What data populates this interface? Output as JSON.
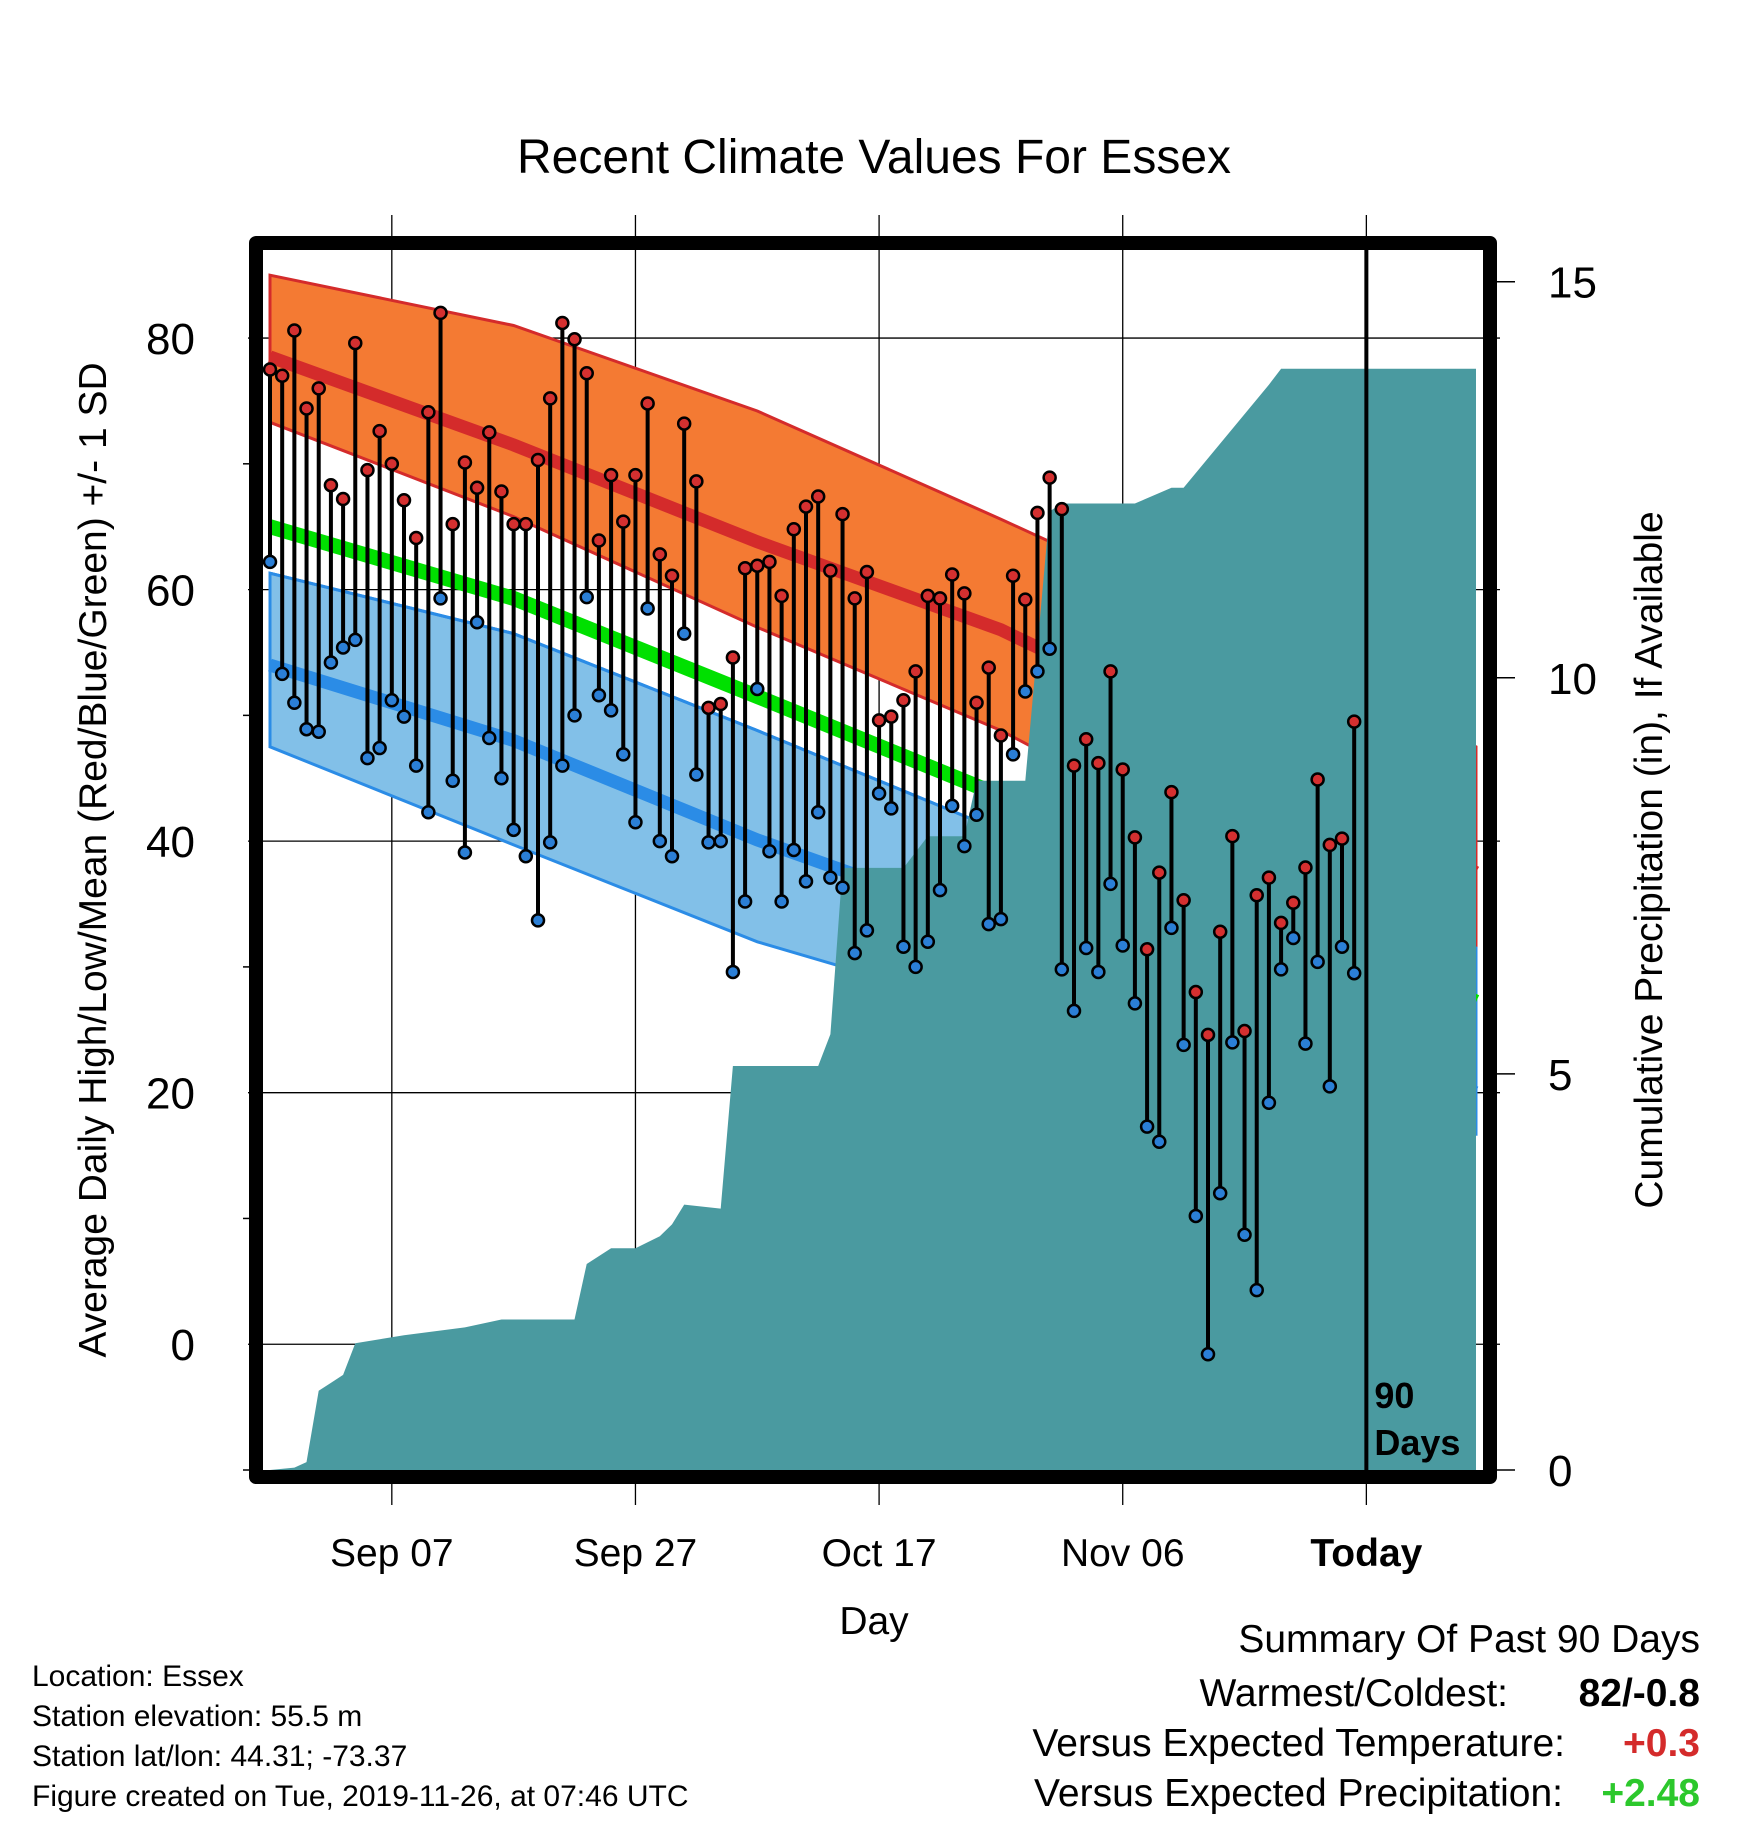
{
  "chart_data": {
    "type": "line",
    "title": "Recent Climate Values For Essex",
    "xlabel": "Day",
    "ylabel": "Average Daily High/Low/Mean (Red/Blue/Green) +/- 1 SD",
    "y2label": "Cumulative Precipitation (in), If Available",
    "x_tick_labels": [
      "Sep 07",
      "Sep 27",
      "Oct 17",
      "Nov 06",
      "Today"
    ],
    "y_ticks": [
      0,
      20,
      40,
      60,
      80
    ],
    "y2_ticks": [
      0,
      5,
      10,
      15
    ],
    "ylim": [
      -10,
      87
    ],
    "y2lim": [
      0,
      15.4
    ],
    "today_label": "90 Days",
    "grid": true,
    "x_start_date": "2019-08-28",
    "today_date": "2019-11-26",
    "x_end_date": "2019-12-05",
    "observed_dates": [
      "2019-08-28",
      "2019-08-29",
      "2019-08-30",
      "2019-08-31",
      "2019-09-01",
      "2019-09-02",
      "2019-09-03",
      "2019-09-04",
      "2019-09-05",
      "2019-09-06",
      "2019-09-07",
      "2019-09-08",
      "2019-09-09",
      "2019-09-10",
      "2019-09-11",
      "2019-09-12",
      "2019-09-13",
      "2019-09-14",
      "2019-09-15",
      "2019-09-16",
      "2019-09-17",
      "2019-09-18",
      "2019-09-19",
      "2019-09-20",
      "2019-09-21",
      "2019-09-22",
      "2019-09-23",
      "2019-09-24",
      "2019-09-25",
      "2019-09-26",
      "2019-09-27",
      "2019-09-28",
      "2019-09-29",
      "2019-09-30",
      "2019-10-01",
      "2019-10-02",
      "2019-10-03",
      "2019-10-04",
      "2019-10-05",
      "2019-10-06",
      "2019-10-07",
      "2019-10-08",
      "2019-10-09",
      "2019-10-10",
      "2019-10-11",
      "2019-10-12",
      "2019-10-13",
      "2019-10-14",
      "2019-10-15",
      "2019-10-16",
      "2019-10-17",
      "2019-10-18",
      "2019-10-19",
      "2019-10-20",
      "2019-10-21",
      "2019-10-22",
      "2019-10-23",
      "2019-10-24",
      "2019-10-25",
      "2019-10-26",
      "2019-10-27",
      "2019-10-28",
      "2019-10-29",
      "2019-10-30",
      "2019-10-31",
      "2019-11-01",
      "2019-11-02",
      "2019-11-03",
      "2019-11-04",
      "2019-11-05",
      "2019-11-06",
      "2019-11-07",
      "2019-11-08",
      "2019-11-09",
      "2019-11-10",
      "2019-11-11",
      "2019-11-12",
      "2019-11-13",
      "2019-11-14",
      "2019-11-15",
      "2019-11-16",
      "2019-11-17",
      "2019-11-18",
      "2019-11-19",
      "2019-11-20",
      "2019-11-21",
      "2019-11-22",
      "2019-11-23",
      "2019-11-24",
      "2019-11-25"
    ],
    "observed_high": [
      77.5,
      77,
      80.6,
      74.4,
      76,
      68.3,
      67.2,
      79.6,
      69.5,
      72.6,
      70,
      67.1,
      64.1,
      74.1,
      82,
      65.2,
      70.1,
      68.1,
      72.5,
      67.8,
      65.2,
      65.2,
      70.3,
      75.2,
      81.2,
      79.9,
      77.2,
      63.9,
      69.1,
      65.4,
      69.1,
      74.8,
      62.8,
      61.1,
      73.2,
      68.6,
      50.6,
      50.9,
      54.6,
      61.7,
      61.9,
      62.2,
      59.5,
      64.8,
      66.6,
      67.4,
      61.5,
      66,
      59.3,
      61.4,
      49.6,
      49.9,
      51.2,
      53.5,
      59.5,
      59.3,
      61.2,
      59.7,
      51,
      53.8,
      48.4,
      61.1,
      59.2,
      66.1,
      68.9,
      66.4,
      46,
      48.1,
      46.2,
      53.5,
      45.7,
      40.3,
      31.4,
      37.5,
      43.9,
      35.3,
      28,
      24.6,
      32.8,
      40.4,
      24.9,
      35.7,
      37.1,
      33.5,
      35.1,
      37.9,
      44.9,
      39.7,
      40.2,
      49.5
    ],
    "observed_low": [
      62.2,
      53.3,
      51,
      48.9,
      48.7,
      54.2,
      55.4,
      56,
      46.6,
      47.4,
      51.2,
      49.9,
      46,
      42.3,
      59.3,
      44.8,
      39.1,
      57.4,
      48.2,
      45,
      40.9,
      38.8,
      33.7,
      39.9,
      46,
      50,
      59.4,
      51.6,
      50.4,
      46.9,
      41.5,
      58.5,
      40,
      38.8,
      56.5,
      45.3,
      39.9,
      40,
      29.6,
      35.2,
      52.1,
      39.2,
      35.2,
      39.3,
      36.8,
      42.3,
      37.1,
      36.3,
      31.1,
      32.9,
      43.8,
      42.6,
      31.6,
      30,
      32,
      36.1,
      42.8,
      39.6,
      42.1,
      33.4,
      33.8,
      46.9,
      51.9,
      53.5,
      55.3,
      29.8,
      26.5,
      31.5,
      29.6,
      36.6,
      31.7,
      27.1,
      17.3,
      16.1,
      33.1,
      23.8,
      10.2,
      -0.8,
      12,
      24,
      8.7,
      4.3,
      19.2,
      29.8,
      32.3,
      23.9,
      30.4,
      20.5,
      31.6,
      29.5
    ],
    "normal_high": {
      "dates": [
        "2019-08-28",
        "2019-09-17",
        "2019-10-07",
        "2019-10-27",
        "2019-11-16",
        "2019-12-05"
      ],
      "values": [
        78.5,
        71.5,
        63.8,
        56.8,
        47.5,
        37.5
      ]
    },
    "normal_high_sd": {
      "upper": [
        85,
        81,
        74.2,
        65.6,
        56.7,
        47.5
      ],
      "lower": [
        73.3,
        65.8,
        57,
        48.8,
        38.6,
        31.5
      ]
    },
    "normal_mean": {
      "dates": [
        "2019-08-28",
        "2019-09-17",
        "2019-10-07",
        "2019-10-27",
        "2019-11-16",
        "2019-12-05"
      ],
      "values": [
        65,
        59.3,
        51.5,
        43.6,
        35.8,
        27.2
      ]
    },
    "normal_low": {
      "dates": [
        "2019-08-28",
        "2019-09-17",
        "2019-10-07",
        "2019-10-27",
        "2019-11-16",
        "2019-12-05"
      ],
      "values": [
        54,
        48,
        40.1,
        33.2,
        27,
        20
      ]
    },
    "normal_low_sd": {
      "upper": [
        61.3,
        56.5,
        48.8,
        40.8,
        37.3,
        31.5
      ],
      "lower": [
        47.5,
        39.7,
        32,
        26.3,
        17.2,
        16.7
      ]
    },
    "cumulative_precip": {
      "dates": [
        "2019-08-28",
        "2019-08-30",
        "2019-08-31",
        "2019-09-01",
        "2019-09-02",
        "2019-09-03",
        "2019-09-04",
        "2019-09-08",
        "2019-09-13",
        "2019-09-16",
        "2019-09-22",
        "2019-09-23",
        "2019-09-25",
        "2019-09-27",
        "2019-09-29",
        "2019-09-30",
        "2019-10-01",
        "2019-10-04",
        "2019-10-05",
        "2019-10-12",
        "2019-10-13",
        "2019-10-14",
        "2019-10-19",
        "2019-10-21",
        "2019-10-24",
        "2019-10-25",
        "2019-10-29",
        "2019-10-31",
        "2019-11-01",
        "2019-11-07",
        "2019-11-10",
        "2019-11-11",
        "2019-11-18",
        "2019-11-19",
        "2019-11-25",
        "2019-12-05"
      ],
      "values": [
        0,
        0.03,
        0.1,
        1,
        1.1,
        1.2,
        1.6,
        1.7,
        1.8,
        1.9,
        1.9,
        2.6,
        2.8,
        2.8,
        2.95,
        3.1,
        3.35,
        3.3,
        5.1,
        5.1,
        5.5,
        7.6,
        7.6,
        8,
        8,
        8.7,
        8.7,
        12.1,
        12.2,
        12.2,
        12.4,
        12.4,
        13.7,
        13.9,
        13.9,
        13.9
      ]
    }
  },
  "info": {
    "location": "Location: Essex",
    "elevation": "Station elevation: 55.5 m",
    "latlon": "Station lat/lon: 44.31; -73.37",
    "created": "Figure created on Tue, 2019-11-26, at 07:46 UTC"
  },
  "summary": {
    "title": "Summary Of Past 90 Days",
    "warm_cold_label": "Warmest/Coldest:",
    "warm_cold_value": "82/-0.8",
    "temp_label": "Versus Expected Temperature:",
    "temp_value": "+0.3",
    "precip_label": "Versus Expected Precipitation:",
    "precip_value": "+2.48"
  },
  "colors": {
    "high_band": "#f47a33",
    "high_line": "#d42b2b",
    "mean_line": "#00e000",
    "low_band": "#82c0e8",
    "low_line": "#2b8ce6",
    "overlap": "#8b1518",
    "precip": "#4a9aa0",
    "high_dot": "#d43030",
    "low_dot": "#2b7fd6",
    "temp_value": "#d42b2b",
    "precip_value": "#2cc82c"
  }
}
